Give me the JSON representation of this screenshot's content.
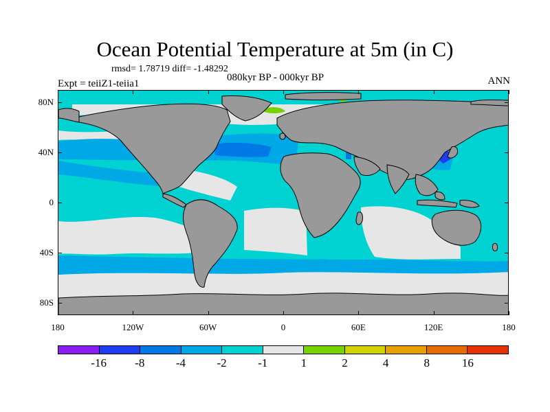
{
  "title": "Ocean Potential Temperature at 5m (in C)",
  "stats": "rmsd= 1.78719 diff= -1.48292",
  "period": "080kyr BP - 000kyr BP",
  "expt": "Expt = teiiZ1-teiia1",
  "season": "ANN",
  "colors": {
    "land": "#999999",
    "ocean_base": "#00d2d2",
    "near_zero": "#e6e6e6",
    "cool_mid": "#00a8e6",
    "cool_strong": "#0078e6",
    "cool_very": "#1e3cf0",
    "warm_small": "#78d200",
    "coast": "#000000"
  },
  "map": {
    "lat_labels": [
      "80N",
      "40N",
      "0",
      "40S",
      "80S"
    ],
    "lon_labels": [
      "180",
      "120W",
      "60W",
      "0",
      "60E",
      "120E",
      "180"
    ],
    "lat_values": [
      80,
      40,
      0,
      -40,
      -80
    ],
    "lon_values": [
      -180,
      -120,
      -60,
      0,
      60,
      120,
      180
    ],
    "projection": "cylindrical equidistant",
    "lon_range": [
      -180,
      180
    ],
    "lat_range": [
      -90,
      90
    ]
  },
  "colorbar": {
    "colors": [
      "#8a1ef0",
      "#1e3cf0",
      "#0078e6",
      "#00a8e6",
      "#00d2d2",
      "#e6e6e6",
      "#78d200",
      "#d2d200",
      "#e6a000",
      "#e66e00",
      "#e63200"
    ],
    "labels": [
      "-16",
      "-8",
      "-4",
      "-2",
      "-1",
      "1",
      "2",
      "4",
      "8",
      "16"
    ]
  }
}
